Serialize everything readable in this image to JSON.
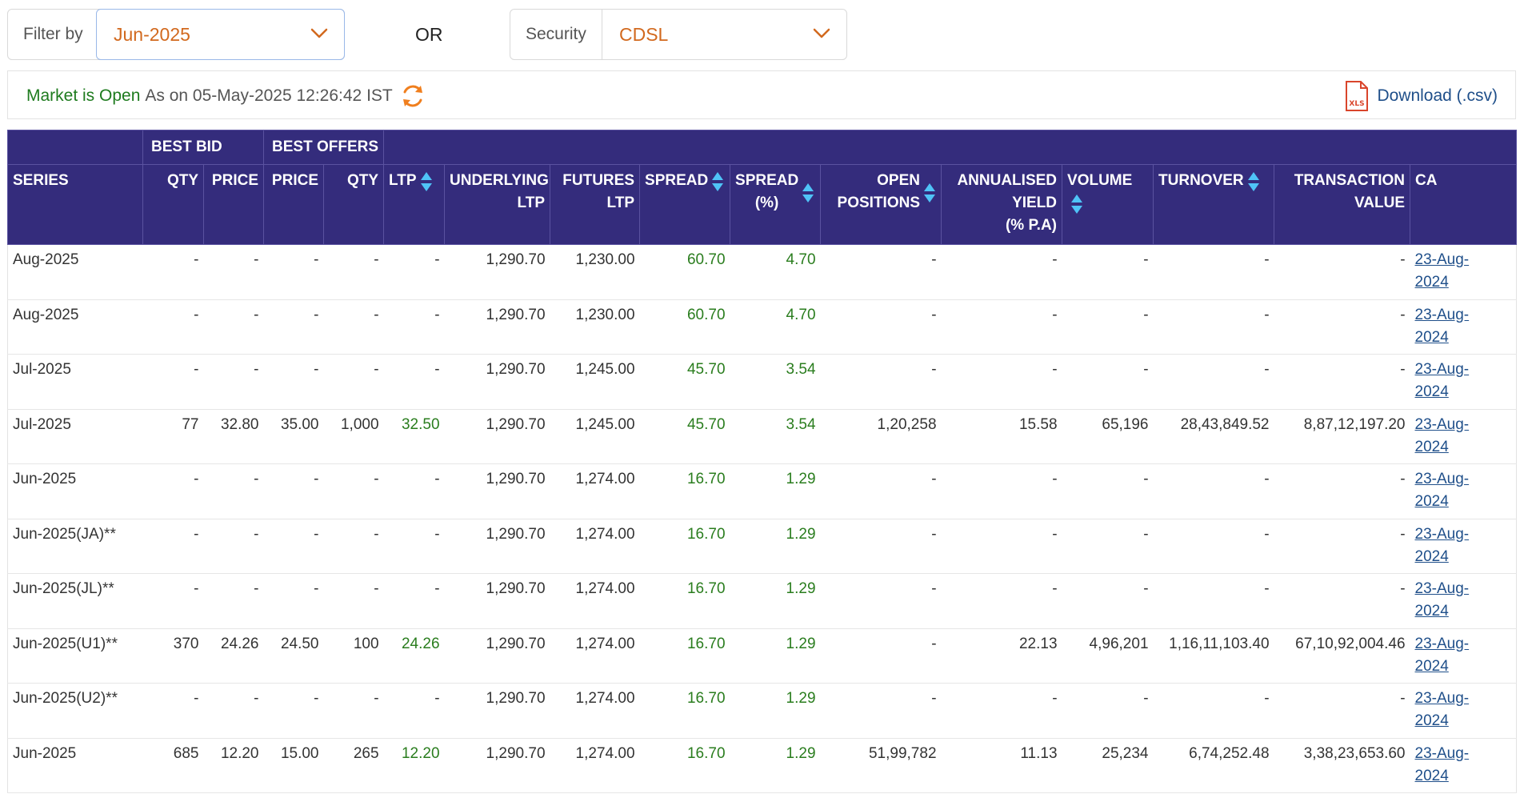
{
  "filters": {
    "filter_label": "Filter by",
    "filter_value": "Jun-2025",
    "or_label": "OR",
    "security_label": "Security",
    "security_value": "CDSL"
  },
  "status": {
    "market_status": "Market is Open",
    "as_on": "As on 05-May-2025 12:26:42 IST",
    "download_label": "Download (.csv)",
    "xls_icon_text": "XLS"
  },
  "colors": {
    "header_bg": "#342c7c",
    "accent_orange": "#d2691e",
    "positive_green": "#2a7d1e",
    "link_blue": "#1f4f8a",
    "sort_arrow": "#4fc3f7"
  },
  "table": {
    "group_headers": {
      "best_bid": "BEST BID",
      "best_offers": "BEST OFFERS"
    },
    "columns": {
      "series": "SERIES",
      "bid_qty": "QTY",
      "bid_price": "PRICE",
      "offer_price": "PRICE",
      "offer_qty": "QTY",
      "ltp": "LTP",
      "underlying_ltp": [
        "UNDERLYING",
        "LTP"
      ],
      "futures_ltp": [
        "FUTURES",
        "LTP"
      ],
      "spread": "SPREAD",
      "spread_pct": [
        "SPREAD",
        "(%)"
      ],
      "open_positions": [
        "OPEN",
        "POSITIONS"
      ],
      "annualised_yield": [
        "ANNUALISED",
        "YIELD",
        "(% P.A)"
      ],
      "volume": "VOLUME",
      "turnover": "TURNOVER",
      "transaction_value": [
        "TRANSACTION",
        "VALUE"
      ],
      "ca": "CA"
    },
    "rows": [
      {
        "series": "Aug-2025",
        "bid_qty": "-",
        "bid_price": "-",
        "offer_price": "-",
        "offer_qty": "-",
        "ltp": "-",
        "underlying_ltp": "1,290.70",
        "futures_ltp": "1,230.00",
        "spread": "60.70",
        "spread_pct": "4.70",
        "open_positions": "-",
        "annualised_yield": "-",
        "volume": "-",
        "turnover": "-",
        "transaction_value": "-",
        "ca": "23-Aug-2024"
      },
      {
        "series": "Aug-2025",
        "bid_qty": "-",
        "bid_price": "-",
        "offer_price": "-",
        "offer_qty": "-",
        "ltp": "-",
        "underlying_ltp": "1,290.70",
        "futures_ltp": "1,230.00",
        "spread": "60.70",
        "spread_pct": "4.70",
        "open_positions": "-",
        "annualised_yield": "-",
        "volume": "-",
        "turnover": "-",
        "transaction_value": "-",
        "ca": "23-Aug-2024"
      },
      {
        "series": "Jul-2025",
        "bid_qty": "-",
        "bid_price": "-",
        "offer_price": "-",
        "offer_qty": "-",
        "ltp": "-",
        "underlying_ltp": "1,290.70",
        "futures_ltp": "1,245.00",
        "spread": "45.70",
        "spread_pct": "3.54",
        "open_positions": "-",
        "annualised_yield": "-",
        "volume": "-",
        "turnover": "-",
        "transaction_value": "-",
        "ca": "23-Aug-2024"
      },
      {
        "series": "Jul-2025",
        "bid_qty": "77",
        "bid_price": "32.80",
        "offer_price": "35.00",
        "offer_qty": "1,000",
        "ltp": "32.50",
        "underlying_ltp": "1,290.70",
        "futures_ltp": "1,245.00",
        "spread": "45.70",
        "spread_pct": "3.54",
        "open_positions": "1,20,258",
        "annualised_yield": "15.58",
        "volume": "65,196",
        "turnover": "28,43,849.52",
        "transaction_value": "8,87,12,197.20",
        "ca": "23-Aug-2024"
      },
      {
        "series": "Jun-2025",
        "bid_qty": "-",
        "bid_price": "-",
        "offer_price": "-",
        "offer_qty": "-",
        "ltp": "-",
        "underlying_ltp": "1,290.70",
        "futures_ltp": "1,274.00",
        "spread": "16.70",
        "spread_pct": "1.29",
        "open_positions": "-",
        "annualised_yield": "-",
        "volume": "-",
        "turnover": "-",
        "transaction_value": "-",
        "ca": "23-Aug-2024"
      },
      {
        "series": "Jun-2025(JA)**",
        "bid_qty": "-",
        "bid_price": "-",
        "offer_price": "-",
        "offer_qty": "-",
        "ltp": "-",
        "underlying_ltp": "1,290.70",
        "futures_ltp": "1,274.00",
        "spread": "16.70",
        "spread_pct": "1.29",
        "open_positions": "-",
        "annualised_yield": "-",
        "volume": "-",
        "turnover": "-",
        "transaction_value": "-",
        "ca": "23-Aug-2024"
      },
      {
        "series": "Jun-2025(JL)**",
        "bid_qty": "-",
        "bid_price": "-",
        "offer_price": "-",
        "offer_qty": "-",
        "ltp": "-",
        "underlying_ltp": "1,290.70",
        "futures_ltp": "1,274.00",
        "spread": "16.70",
        "spread_pct": "1.29",
        "open_positions": "-",
        "annualised_yield": "-",
        "volume": "-",
        "turnover": "-",
        "transaction_value": "-",
        "ca": "23-Aug-2024"
      },
      {
        "series": "Jun-2025(U1)**",
        "bid_qty": "370",
        "bid_price": "24.26",
        "offer_price": "24.50",
        "offer_qty": "100",
        "ltp": "24.26",
        "underlying_ltp": "1,290.70",
        "futures_ltp": "1,274.00",
        "spread": "16.70",
        "spread_pct": "1.29",
        "open_positions": "-",
        "annualised_yield": "22.13",
        "volume": "4,96,201",
        "turnover": "1,16,11,103.40",
        "transaction_value": "67,10,92,004.46",
        "ca": "23-Aug-2024"
      },
      {
        "series": "Jun-2025(U2)**",
        "bid_qty": "-",
        "bid_price": "-",
        "offer_price": "-",
        "offer_qty": "-",
        "ltp": "-",
        "underlying_ltp": "1,290.70",
        "futures_ltp": "1,274.00",
        "spread": "16.70",
        "spread_pct": "1.29",
        "open_positions": "-",
        "annualised_yield": "-",
        "volume": "-",
        "turnover": "-",
        "transaction_value": "-",
        "ca": "23-Aug-2024"
      },
      {
        "series": "Jun-2025",
        "bid_qty": "685",
        "bid_price": "12.20",
        "offer_price": "15.00",
        "offer_qty": "265",
        "ltp": "12.20",
        "underlying_ltp": "1,290.70",
        "futures_ltp": "1,274.00",
        "spread": "16.70",
        "spread_pct": "1.29",
        "open_positions": "51,99,782",
        "annualised_yield": "11.13",
        "volume": "25,234",
        "turnover": "6,74,252.48",
        "transaction_value": "3,38,23,653.60",
        "ca": "23-Aug-2024"
      }
    ]
  }
}
